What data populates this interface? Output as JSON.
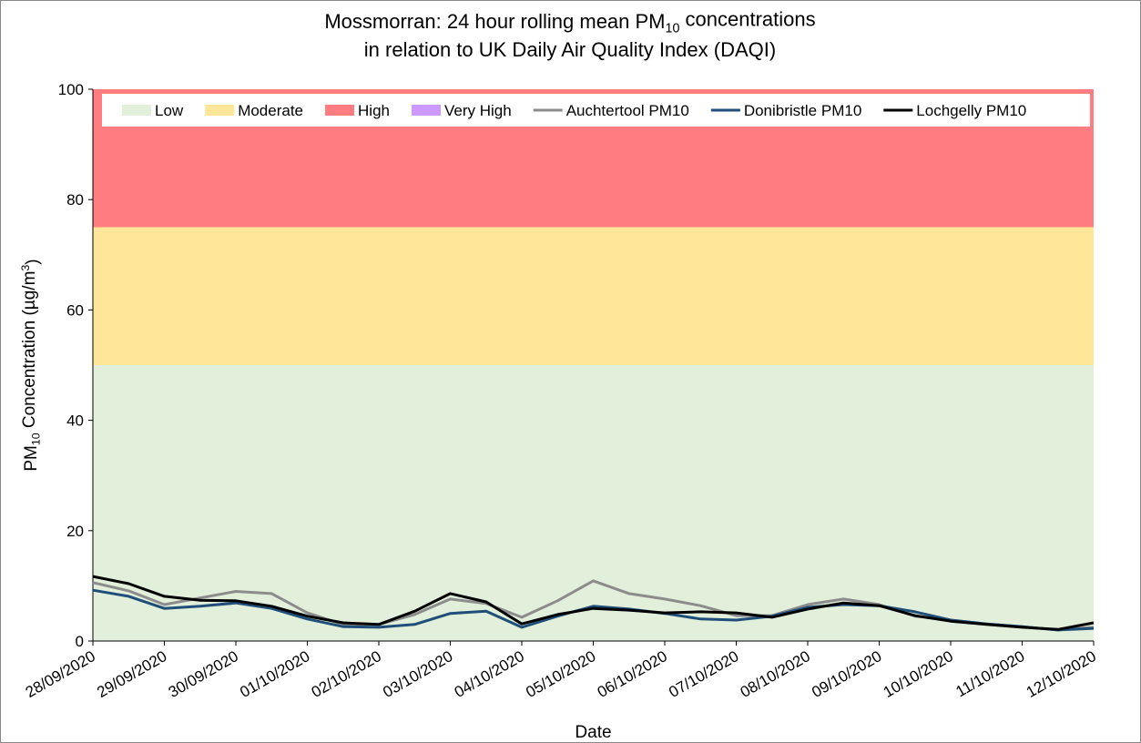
{
  "chart_data": {
    "type": "line",
    "title": [
      [
        "Mossmorran: 24 hour rolling mean PM",
        "10",
        " concentrations"
      ],
      [
        "in relation to UK Daily Air Quality Index (DAQI)"
      ]
    ],
    "ylabel": [
      "PM",
      "10",
      " Concentration (µg/m",
      "3",
      ")"
    ],
    "xlabel": "Date",
    "bands": [
      {
        "name": "Low",
        "color": "#e2efda",
        "value": 50
      },
      {
        "name": "Moderate",
        "color": "#ffe699",
        "value": 25
      },
      {
        "name": "High",
        "color": "#ff7c80",
        "value": 25
      },
      {
        "name": "Very High",
        "color": "#cc99ff",
        "value": null
      }
    ],
    "x": [
      0,
      0.5,
      1,
      1.5,
      2,
      2.5,
      3,
      3.5,
      4,
      4.5,
      5,
      5.5,
      6,
      6.5,
      7,
      7.5,
      8,
      8.5,
      9,
      9.5,
      10,
      10.5,
      11,
      11.5,
      12,
      12.5,
      13,
      13.5,
      14
    ],
    "series": [
      {
        "name": "Auchtertool PM10",
        "color": "#8c8c8c",
        "values": [
          10.6,
          9.1,
          6.6,
          7.8,
          9.0,
          8.6,
          5.1,
          3.0,
          3.0,
          4.8,
          7.6,
          6.8,
          4.3,
          7.3,
          10.9,
          8.6,
          7.6,
          6.4,
          4.6,
          4.6,
          6.6,
          7.6,
          6.6,
          4.5,
          3.8,
          3.1,
          2.6,
          2.0,
          2.5
        ]
      },
      {
        "name": "Donibristle PM10",
        "color": "#1f4e79",
        "values": [
          9.2,
          8.1,
          5.9,
          6.3,
          6.9,
          5.9,
          4.0,
          2.6,
          2.5,
          3.0,
          5.0,
          5.4,
          2.5,
          4.5,
          6.3,
          5.8,
          5.0,
          4.0,
          3.8,
          4.5,
          6.1,
          6.6,
          6.4,
          5.3,
          3.8,
          3.1,
          2.6,
          2.0,
          2.3
        ]
      },
      {
        "name": "Lochgelly PM10",
        "color": "#000000",
        "values": [
          11.7,
          10.4,
          8.1,
          7.4,
          7.3,
          6.3,
          4.5,
          3.3,
          3.0,
          5.4,
          8.6,
          7.1,
          3.1,
          4.8,
          5.9,
          5.6,
          5.1,
          5.3,
          5.1,
          4.3,
          5.8,
          6.9,
          6.4,
          4.6,
          3.6,
          3.0,
          2.5,
          2.1,
          3.3
        ]
      }
    ],
    "xlim": [
      0,
      14
    ],
    "xticks": [
      {
        "value": 0,
        "label": "28/09/2020"
      },
      {
        "value": 1,
        "label": "29/09/2020"
      },
      {
        "value": 2,
        "label": "30/09/2020"
      },
      {
        "value": 3,
        "label": "01/10/2020"
      },
      {
        "value": 4,
        "label": "02/10/2020"
      },
      {
        "value": 5,
        "label": "03/10/2020"
      },
      {
        "value": 6,
        "label": "04/10/2020"
      },
      {
        "value": 7,
        "label": "05/10/2020"
      },
      {
        "value": 8,
        "label": "06/10/2020"
      },
      {
        "value": 9,
        "label": "07/10/2020"
      },
      {
        "value": 10,
        "label": "08/10/2020"
      },
      {
        "value": 11,
        "label": "09/10/2020"
      },
      {
        "value": 12,
        "label": "10/10/2020"
      },
      {
        "value": 13,
        "label": "11/10/2020"
      },
      {
        "value": 14,
        "label": "12/10/2020"
      }
    ],
    "ylim": [
      0,
      100
    ],
    "yticks": [
      0,
      20,
      40,
      60,
      80,
      100
    ],
    "legend": "top"
  }
}
